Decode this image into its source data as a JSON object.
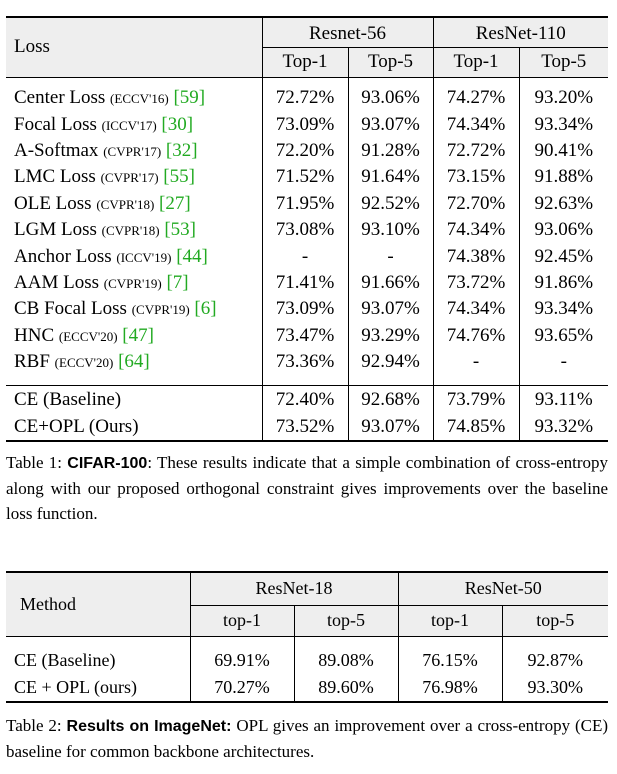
{
  "table1": {
    "header": {
      "loss": "Loss",
      "group1": "Resnet-56",
      "group2": "ResNet-110",
      "cols": [
        "Top-1",
        "Top-5",
        "Top-1",
        "Top-5"
      ]
    },
    "rows": [
      {
        "name": "Center Loss",
        "venue": "(ECCV'16)",
        "cite": "[59]",
        "vals": [
          "72.72%",
          "93.06%",
          "74.27%",
          "93.20%"
        ]
      },
      {
        "name": "Focal Loss",
        "venue": "(ICCV'17)",
        "cite": "[30]",
        "vals": [
          "73.09%",
          "93.07%",
          "74.34%",
          "93.34%"
        ]
      },
      {
        "name": "A-Softmax",
        "venue": "(CVPR'17)",
        "cite": "[32]",
        "vals": [
          "72.20%",
          "91.28%",
          "72.72%",
          "90.41%"
        ]
      },
      {
        "name": "LMC Loss",
        "venue": "(CVPR'17)",
        "cite": "[55]",
        "vals": [
          "71.52%",
          "91.64%",
          "73.15%",
          "91.88%"
        ]
      },
      {
        "name": "OLE Loss",
        "venue": "(CVPR'18)",
        "cite": "[27]",
        "vals": [
          "71.95%",
          "92.52%",
          "72.70%",
          "92.63%"
        ]
      },
      {
        "name": "LGM Loss",
        "venue": "(CVPR'18)",
        "cite": "[53]",
        "vals": [
          "73.08%",
          "93.10%",
          "74.34%",
          "93.06%"
        ]
      },
      {
        "name": "Anchor Loss",
        "venue": "(ICCV'19)",
        "cite": "[44]",
        "vals": [
          "-",
          "-",
          "74.38%",
          "92.45%"
        ]
      },
      {
        "name": "AAM Loss",
        "venue": "(CVPR'19)",
        "cite": "[7]",
        "vals": [
          "71.41%",
          "91.66%",
          "73.72%",
          "91.86%"
        ]
      },
      {
        "name": "CB Focal Loss",
        "venue": "(CVPR'19)",
        "cite": "[6]",
        "vals": [
          "73.09%",
          "93.07%",
          "74.34%",
          "93.34%"
        ]
      },
      {
        "name": "HNC",
        "venue": "(ECCV'20)",
        "cite": "[47]",
        "vals": [
          "73.47%",
          "93.29%",
          "74.76%",
          "93.65%"
        ]
      },
      {
        "name": "RBF",
        "venue": "(ECCV'20)",
        "cite": "[64]",
        "vals": [
          "73.36%",
          "92.94%",
          "-",
          "-"
        ]
      }
    ],
    "ours": [
      {
        "name": "CE (Baseline)",
        "vals": [
          "72.40%",
          "92.68%",
          "73.79%",
          "93.11%"
        ]
      },
      {
        "name": "CE+OPL (Ours)",
        "vals": [
          "73.52%",
          "93.07%",
          "74.85%",
          "93.32%"
        ]
      }
    ]
  },
  "caption1": {
    "label": "Table 1:",
    "bold": "CIFAR-100",
    "text": ": These results indicate that a simple combination of cross-entropy along with our proposed orthogonal constraint gives improvements over the baseline loss function."
  },
  "table2": {
    "header": {
      "method": "Method",
      "group1": "ResNet-18",
      "group2": "ResNet-50",
      "cols": [
        "top-1",
        "top-5",
        "top-1",
        "top-5"
      ]
    },
    "rows": [
      {
        "name": "CE (Baseline)",
        "vals": [
          "69.91%",
          "89.08%",
          "76.15%",
          "92.87%"
        ]
      },
      {
        "name": "CE + OPL (ours)",
        "vals": [
          "70.27%",
          "89.60%",
          "76.98%",
          "93.30%"
        ]
      }
    ]
  },
  "caption2": {
    "label": "Table 2:",
    "bold": "Results on ImageNet:",
    "text": " OPL gives an improvement over a cross-entropy (CE) baseline for common backbone architectures."
  }
}
